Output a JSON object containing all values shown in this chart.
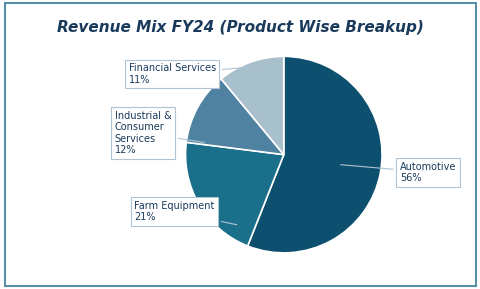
{
  "title": "Revenue Mix FY24 (Product Wise Breakup)",
  "slices": [
    {
      "label": "Automotive",
      "value": 56,
      "color": "#0d4f6e"
    },
    {
      "label": "Farm Equipment",
      "value": 21,
      "color": "#1a6f8a"
    },
    {
      "label": "Industrial &\nConsumer\nServices",
      "value": 12,
      "color": "#4f82a0"
    },
    {
      "label": "Financial Services",
      "value": 11,
      "color": "#a8bfcc"
    }
  ],
  "background_color": "#ffffff",
  "border_color": "#5a8fa8",
  "title_color": "#1a3a5c",
  "label_color": "#1a3a5c",
  "pct_color": "#c0392b",
  "label_fontsize": 7,
  "title_fontsize": 11,
  "startangle": 90
}
